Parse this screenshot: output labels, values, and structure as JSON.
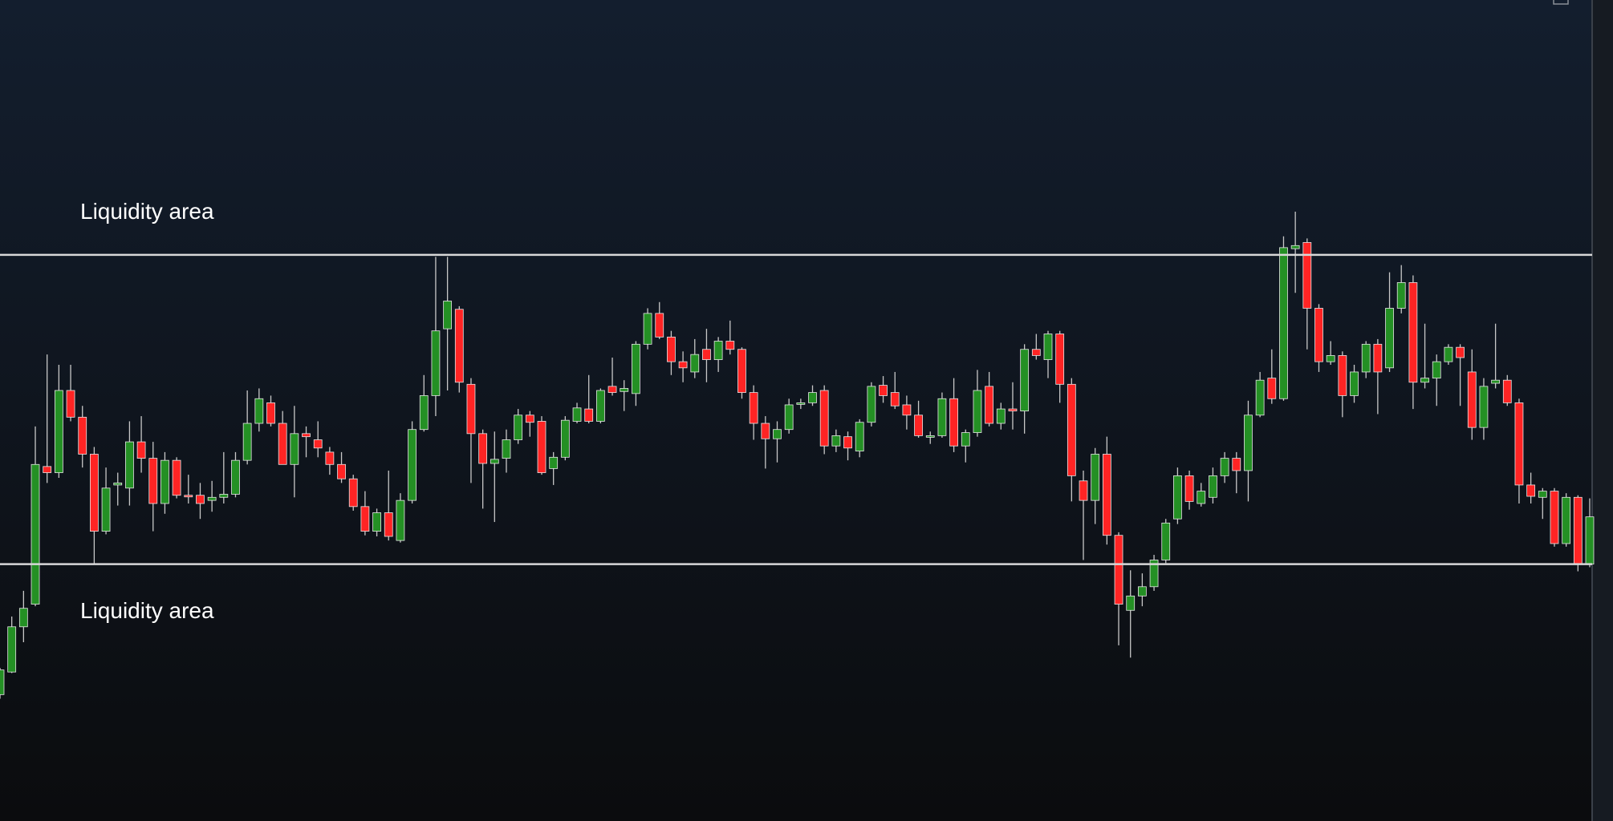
{
  "chart_data": {
    "type": "candlestick",
    "ylim": [
      1,
      800
    ],
    "up_color": "#249024",
    "down_color": "#ff2424",
    "line_color": "#d8d8d8",
    "open": [
      124,
      146,
      190,
      212,
      346,
      340,
      420,
      394,
      358,
      283,
      328,
      325,
      370,
      354,
      310,
      352,
      318,
      318,
      313,
      316,
      319,
      352,
      388,
      408,
      388,
      348,
      378,
      372,
      360,
      348,
      334,
      307,
      283,
      301,
      274,
      313,
      382,
      415,
      480,
      499,
      426,
      378,
      349,
      354,
      372,
      396,
      390,
      344,
      355,
      390,
      402,
      390,
      424,
      419,
      417,
      465,
      495,
      472,
      448,
      438,
      460,
      450,
      468,
      460,
      418,
      388,
      373,
      382,
      407,
      408,
      420,
      366,
      375,
      361,
      389,
      425,
      418,
      406,
      396,
      376,
      376,
      412,
      366,
      379,
      424,
      388,
      402,
      400,
      460,
      450,
      475,
      426,
      332,
      313,
      358,
      279,
      206,
      220,
      229,
      255,
      295,
      337,
      310,
      316,
      337,
      354,
      342,
      396,
      432,
      412,
      558,
      564,
      500,
      448,
      454,
      415,
      438,
      465,
      442,
      500,
      525,
      428,
      432,
      448,
      462,
      438,
      384,
      427,
      430,
      408,
      328,
      316,
      322,
      271,
      316,
      251
    ],
    "high": [
      150,
      200,
      225,
      385,
      455,
      445,
      445,
      405,
      365,
      345,
      340,
      390,
      395,
      370,
      360,
      355,
      338,
      330,
      332,
      360,
      360,
      420,
      422,
      415,
      400,
      405,
      385,
      390,
      365,
      360,
      338,
      322,
      305,
      342,
      320,
      390,
      435,
      550,
      550,
      502,
      432,
      382,
      380,
      382,
      402,
      400,
      395,
      360,
      395,
      408,
      435,
      422,
      452,
      430,
      468,
      500,
      506,
      478,
      458,
      470,
      480,
      472,
      488,
      462,
      425,
      395,
      390,
      412,
      412,
      425,
      425,
      382,
      380,
      392,
      428,
      434,
      438,
      415,
      410,
      380,
      418,
      432,
      382,
      440,
      438,
      408,
      428,
      465,
      475,
      478,
      478,
      432,
      342,
      364,
      375,
      282,
      245,
      242,
      260,
      295,
      345,
      342,
      330,
      345,
      360,
      360,
      410,
      438,
      460,
      570,
      594,
      568,
      504,
      468,
      458,
      445,
      468,
      470,
      535,
      542,
      532,
      485,
      455,
      465,
      465,
      460,
      432,
      485,
      435,
      412,
      340,
      325,
      325,
      320,
      318,
      315
    ],
    "low": [
      120,
      145,
      175,
      210,
      330,
      335,
      390,
      345,
      251,
      280,
      308,
      308,
      340,
      283,
      300,
      315,
      310,
      295,
      302,
      310,
      316,
      348,
      380,
      385,
      348,
      316,
      355,
      355,
      338,
      330,
      303,
      279,
      278,
      274,
      272,
      310,
      380,
      395,
      420,
      418,
      330,
      305,
      292,
      340,
      368,
      375,
      338,
      328,
      352,
      388,
      388,
      388,
      415,
      400,
      405,
      460,
      470,
      435,
      428,
      432,
      428,
      438,
      455,
      412,
      372,
      344,
      350,
      378,
      402,
      405,
      358,
      360,
      352,
      355,
      385,
      408,
      402,
      382,
      374,
      368,
      374,
      360,
      350,
      375,
      385,
      382,
      382,
      378,
      450,
      432,
      408,
      312,
      255,
      290,
      270,
      172,
      160,
      210,
      225,
      252,
      290,
      304,
      307,
      310,
      330,
      320,
      312,
      394,
      407,
      410,
      515,
      460,
      438,
      445,
      394,
      408,
      432,
      397,
      438,
      495,
      402,
      422,
      405,
      445,
      405,
      372,
      372,
      422,
      405,
      310,
      310,
      295,
      268,
      268,
      244,
      248
    ],
    "close": [
      148,
      190,
      208,
      348,
      340,
      420,
      394,
      358,
      283,
      325,
      330,
      370,
      354,
      310,
      352,
      318,
      317,
      310,
      316,
      319,
      352,
      388,
      412,
      388,
      348,
      378,
      375,
      364,
      348,
      334,
      307,
      283,
      301,
      278,
      313,
      382,
      415,
      478,
      507,
      428,
      378,
      349,
      353,
      372,
      396,
      389,
      340,
      355,
      391,
      403,
      390,
      420,
      418,
      422,
      465,
      495,
      472,
      448,
      442,
      455,
      450,
      468,
      460,
      418,
      388,
      373,
      382,
      406,
      408,
      418,
      366,
      376,
      364,
      389,
      424,
      415,
      405,
      396,
      376,
      376,
      412,
      366,
      379,
      420,
      388,
      402,
      400,
      460,
      454,
      475,
      426,
      337,
      313,
      358,
      279,
      212,
      220,
      229,
      255,
      291,
      337,
      312,
      322,
      337,
      354,
      342,
      396,
      430,
      412,
      559,
      561,
      500,
      448,
      454,
      415,
      438,
      465,
      438,
      500,
      525,
      428,
      432,
      448,
      462,
      452,
      384,
      424,
      430,
      408,
      328,
      317,
      322,
      271,
      316,
      251,
      297
    ],
    "annotations": [
      {
        "text": "Liquidity area",
        "y": 552
      },
      {
        "text": "Liquidity area",
        "y": 251
      }
    ]
  }
}
